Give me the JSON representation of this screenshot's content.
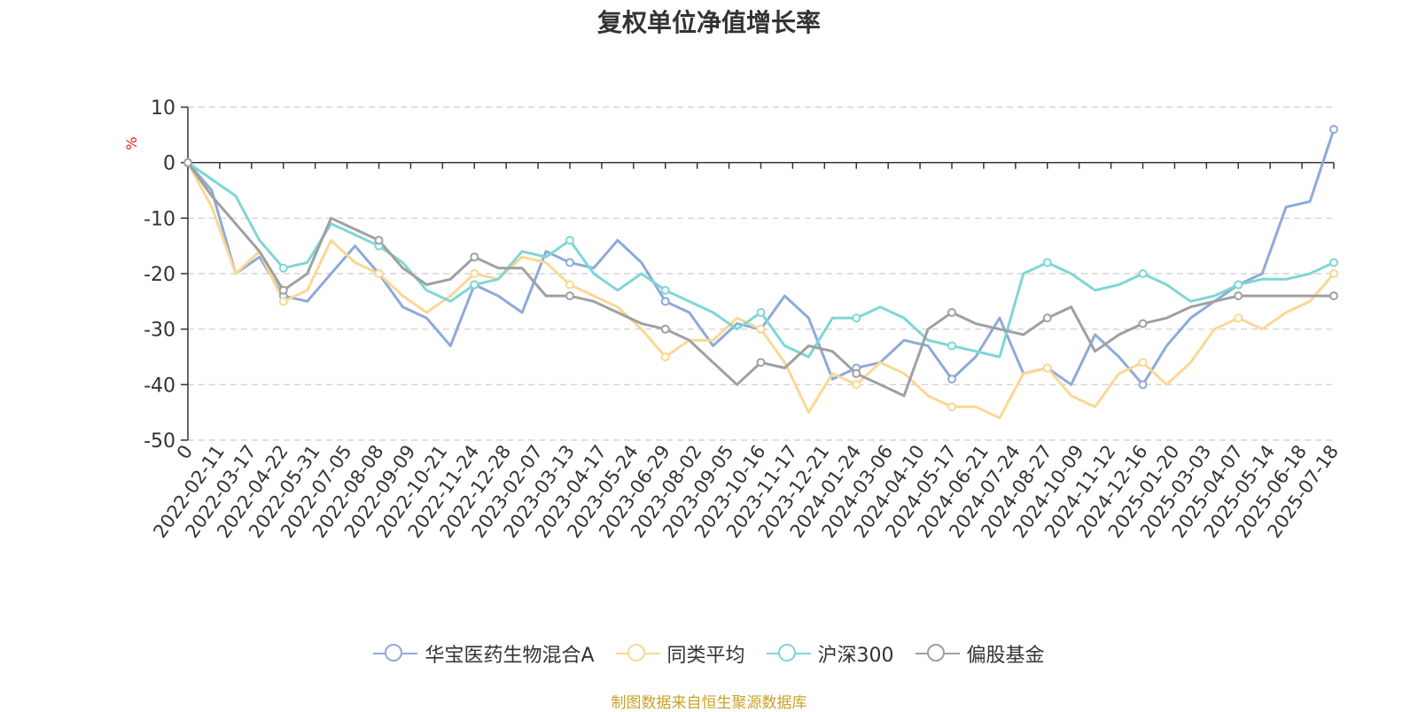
{
  "chart_data": {
    "type": "line",
    "title": "复权单位净值增长率",
    "ylabel": "%",
    "ylim": [
      -50,
      10
    ],
    "yticks": [
      10,
      0,
      -10,
      -20,
      -30,
      -40,
      -50
    ],
    "x_tick_labels": [
      "0",
      "2022-02-11",
      "2022-03-17",
      "2022-04-22",
      "2022-05-31",
      "2022-07-05",
      "2022-08-08",
      "2022-09-09",
      "2022-10-21",
      "2022-11-24",
      "2022-12-28",
      "2023-02-07",
      "2023-03-13",
      "2023-04-17",
      "2023-05-24",
      "2023-06-29",
      "2023-08-02",
      "2023-09-05",
      "2023-10-16",
      "2023-11-17",
      "2023-12-21",
      "2024-01-24",
      "2024-03-06",
      "2024-04-10",
      "2024-05-17",
      "2024-06-21",
      "2024-07-24",
      "2024-08-27",
      "2024-10-09",
      "2024-11-12",
      "2024-12-16",
      "2025-01-20",
      "2025-03-03",
      "2025-04-07",
      "2025-05-14",
      "2025-06-18",
      "2025-07-18"
    ],
    "grid": "horizontal dashed",
    "legend_position": "bottom",
    "series": [
      {
        "name": "华宝医药生物混合A",
        "color": "#8eaad9",
        "values": [
          0,
          -5,
          -20,
          -17,
          -24,
          -25,
          -20,
          -15,
          -20,
          -26,
          -28,
          -33,
          -22,
          -24,
          -27,
          -16,
          -18,
          -19,
          -14,
          -18,
          -25,
          -27,
          -33,
          -29,
          -30,
          -24,
          -28,
          -39,
          -37,
          -36,
          -32,
          -33,
          -39,
          -35,
          -28,
          -38,
          -37,
          -40,
          -31,
          -35,
          -40,
          -33,
          -28,
          -25,
          -22,
          -20,
          -8,
          -7,
          6
        ]
      },
      {
        "name": "同类平均",
        "color": "#fad894",
        "values": [
          0,
          -8,
          -20,
          -16,
          -25,
          -23,
          -14,
          -18,
          -20,
          -24,
          -27,
          -24,
          -20,
          -21,
          -17,
          -18,
          -22,
          -24,
          -26,
          -30,
          -35,
          -32,
          -32,
          -28,
          -30,
          -36,
          -45,
          -38,
          -40,
          -36,
          -38,
          -42,
          -44,
          -44,
          -46,
          -38,
          -37,
          -42,
          -44,
          -38,
          -36,
          -40,
          -36,
          -30,
          -28,
          -30,
          -27,
          -25,
          -20
        ]
      },
      {
        "name": "沪深300",
        "color": "#7fd6d6",
        "values": [
          0,
          -3,
          -6,
          -14,
          -19,
          -18,
          -11,
          -13,
          -15,
          -18,
          -23,
          -25,
          -22,
          -21,
          -16,
          -17,
          -14,
          -20,
          -23,
          -20,
          -23,
          -25,
          -27,
          -30,
          -27,
          -33,
          -35,
          -28,
          -28,
          -26,
          -28,
          -32,
          -33,
          -34,
          -35,
          -20,
          -18,
          -20,
          -23,
          -22,
          -20,
          -22,
          -25,
          -24,
          -22,
          -21,
          -21,
          -20,
          -18
        ]
      },
      {
        "name": "偏股基金",
        "color": "#a0a0a0",
        "values": [
          0,
          -6,
          -11,
          -16,
          -23,
          -20,
          -10,
          -12,
          -14,
          -19,
          -22,
          -21,
          -17,
          -19,
          -19,
          -24,
          -24,
          -25,
          -27,
          -29,
          -30,
          -32,
          -36,
          -40,
          -36,
          -37,
          -33,
          -34,
          -38,
          -40,
          -42,
          -30,
          -27,
          -29,
          -30,
          -31,
          -28,
          -26,
          -34,
          -31,
          -29,
          -28,
          -26,
          -25,
          -24,
          -24,
          -24,
          -24,
          -24
        ]
      }
    ]
  },
  "legend": [
    {
      "label": "华宝医药生物混合A",
      "color": "#8eaad9"
    },
    {
      "label": "同类平均",
      "color": "#fad894"
    },
    {
      "label": "沪深300",
      "color": "#7fd6d6"
    },
    {
      "label": "偏股基金",
      "color": "#a0a0a0"
    }
  ],
  "source_text": "制图数据来自恒生聚源数据库"
}
